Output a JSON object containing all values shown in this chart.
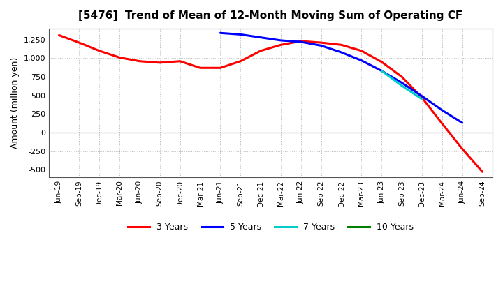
{
  "title": "[5476]  Trend of Mean of 12-Month Moving Sum of Operating CF",
  "ylabel": "Amount (million yen)",
  "background_color": "#ffffff",
  "plot_bg_color": "#ffffff",
  "grid_color": "#aaaaaa",
  "x_labels": [
    "Jun-19",
    "Sep-19",
    "Dec-19",
    "Mar-20",
    "Jun-20",
    "Sep-20",
    "Dec-20",
    "Mar-21",
    "Jun-21",
    "Sep-21",
    "Dec-21",
    "Mar-22",
    "Jun-22",
    "Sep-22",
    "Dec-22",
    "Mar-23",
    "Jun-23",
    "Sep-23",
    "Dec-23",
    "Mar-24",
    "Jun-24",
    "Sep-24"
  ],
  "y_ticks": [
    -500,
    -250,
    0,
    250,
    500,
    750,
    1000,
    1250
  ],
  "ylim": [
    -600,
    1400
  ],
  "series": {
    "3yr": {
      "color": "#ff0000",
      "label": "3 Years",
      "x": [
        0,
        1,
        2,
        3,
        4,
        5,
        6,
        7,
        8,
        9,
        10,
        11,
        12,
        13,
        14,
        15,
        16,
        17,
        18,
        19,
        20,
        21
      ],
      "y": [
        1310,
        1210,
        1100,
        1010,
        960,
        940,
        960,
        870,
        870,
        960,
        1100,
        1180,
        1230,
        1210,
        1180,
        1100,
        950,
        750,
        470,
        120,
        -220,
        -530
      ]
    },
    "5yr": {
      "color": "#0000ff",
      "label": "5 Years",
      "x": [
        8,
        9,
        10,
        11,
        12,
        13,
        14,
        15,
        16,
        17,
        18,
        19,
        20
      ],
      "y": [
        1340,
        1320,
        1280,
        1240,
        1220,
        1170,
        1080,
        970,
        830,
        670,
        490,
        300,
        130
      ]
    },
    "7yr": {
      "color": "#00cccc",
      "label": "7 Years",
      "x": [
        16,
        17,
        18
      ],
      "y": [
        830,
        630,
        450
      ]
    },
    "10yr": {
      "color": "#008000",
      "label": "10 Years",
      "x": [],
      "y": []
    }
  }
}
